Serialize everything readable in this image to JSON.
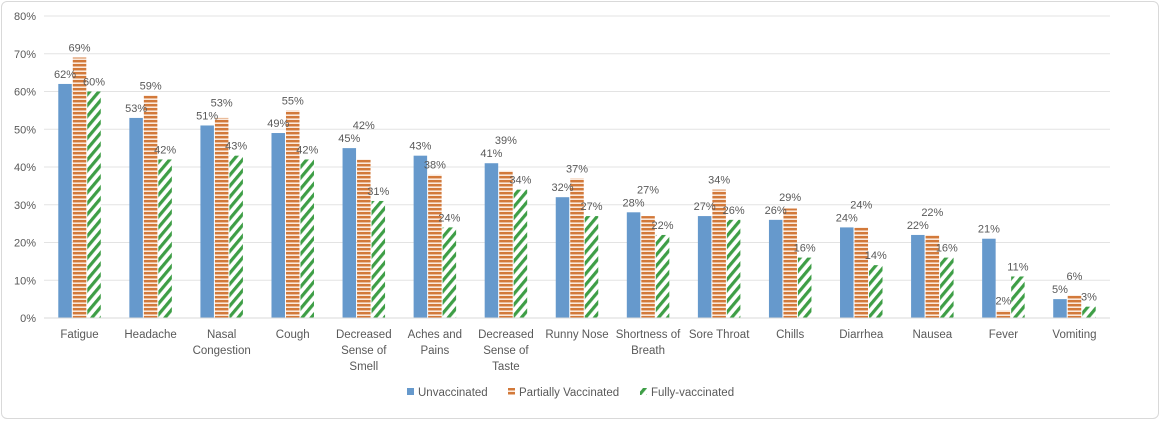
{
  "chart_data": {
    "type": "bar",
    "title": "",
    "xlabel": "",
    "ylabel": "",
    "ylim": [
      0,
      80
    ],
    "yticks": [
      "0%",
      "10%",
      "20%",
      "30%",
      "40%",
      "50%",
      "60%",
      "70%",
      "80%"
    ],
    "grid": true,
    "legend_position": "bottom",
    "categories": [
      "Fatigue",
      "Headache",
      "Nasal Congestion",
      "Cough",
      "Decreased Sense of Smell",
      "Aches and Pains",
      "Decreased Sense of Taste",
      "Runny Nose",
      "Shortness of Breath",
      "Sore Throat",
      "Chills",
      "Diarrhea",
      "Nausea",
      "Fever",
      "Vomiting"
    ],
    "series": [
      {
        "name": "Unvaccinated",
        "color": "#6699cc",
        "pattern": "solid",
        "values": [
          62,
          53,
          51,
          49,
          45,
          43,
          41,
          32,
          28,
          27,
          26,
          24,
          22,
          21,
          5
        ]
      },
      {
        "name": "Partially Vaccinated",
        "color": "#d2793a",
        "pattern": "horizontal-stripes",
        "values": [
          69,
          59,
          53,
          55,
          42,
          38,
          39,
          37,
          27,
          34,
          29,
          24,
          22,
          2,
          6
        ]
      },
      {
        "name": "Fully-vaccinated",
        "color": "#3e9e46",
        "pattern": "diagonal-stripes",
        "values": [
          60,
          42,
          43,
          42,
          31,
          24,
          34,
          27,
          22,
          26,
          16,
          14,
          16,
          11,
          3
        ]
      }
    ]
  }
}
